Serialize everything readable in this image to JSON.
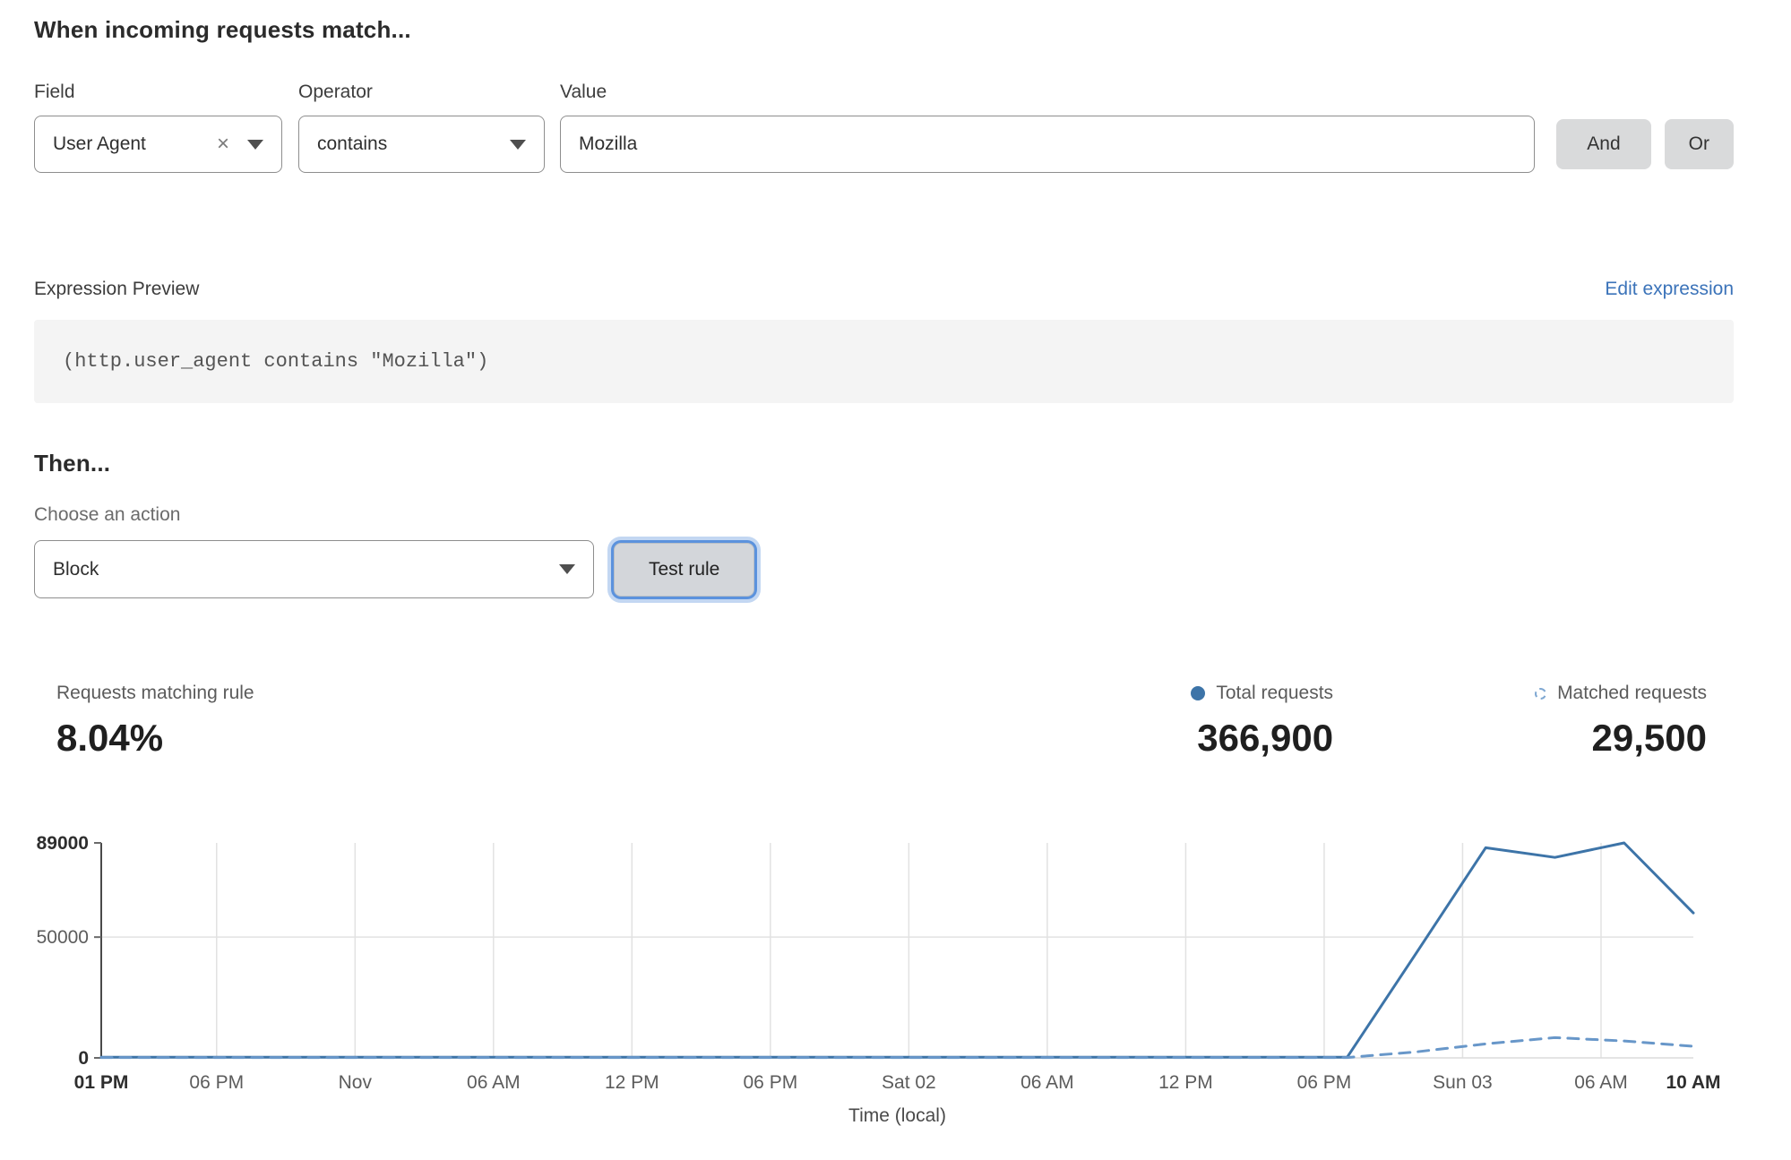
{
  "match_section": {
    "heading": "When incoming requests match...",
    "field": {
      "label": "Field",
      "value": "User Agent"
    },
    "operator": {
      "label": "Operator",
      "value": "contains"
    },
    "value": {
      "label": "Value",
      "value": "Mozilla"
    },
    "and_label": "And",
    "or_label": "Or"
  },
  "icons": {
    "clear": "×"
  },
  "expression": {
    "label": "Expression Preview",
    "edit_link": "Edit expression",
    "code": "(http.user_agent contains \"Mozilla\")"
  },
  "then_section": {
    "heading": "Then...",
    "action_label": "Choose an action",
    "action_value": "Block",
    "test_button": "Test rule"
  },
  "stats": {
    "matching_label": "Requests matching rule",
    "matching_value": "8.04%",
    "total_label": "Total requests",
    "total_value": "366,900",
    "matched_label": "Matched requests",
    "matched_value": "29,500"
  },
  "colors": {
    "solid_line": "#3d74a8",
    "dashed_line": "#6897c9",
    "link_blue": "#3b73b9",
    "grid": "#e2e2e2"
  },
  "chart_data": {
    "type": "line",
    "title": "",
    "xlabel": "Time (local)",
    "ylabel": "",
    "xlim": [
      0,
      69
    ],
    "ylim": [
      0,
      89000
    ],
    "grid": true,
    "legend_position": "above-right",
    "x_hours": [
      0,
      3,
      6,
      9,
      12,
      15,
      18,
      21,
      24,
      27,
      30,
      33,
      36,
      39,
      42,
      45,
      48,
      51,
      54,
      57,
      60,
      63,
      66,
      69
    ],
    "series": [
      {
        "name": "Total requests",
        "style": "solid",
        "color": "#3d74a8",
        "values": [
          300,
          300,
          300,
          300,
          300,
          300,
          300,
          300,
          300,
          300,
          300,
          300,
          300,
          300,
          300,
          300,
          300,
          300,
          300,
          43500,
          87000,
          83000,
          89000,
          60000
        ]
      },
      {
        "name": "Matched requests",
        "style": "dashed",
        "color": "#6897c9",
        "values": [
          150,
          150,
          150,
          150,
          150,
          150,
          150,
          150,
          150,
          150,
          150,
          150,
          150,
          150,
          150,
          150,
          150,
          150,
          150,
          2500,
          5800,
          8400,
          7000,
          4800
        ]
      }
    ],
    "x_ticks": [
      {
        "hour": 0,
        "label": "01 PM",
        "bold": true
      },
      {
        "hour": 5,
        "label": "06 PM"
      },
      {
        "hour": 11,
        "label": "Nov"
      },
      {
        "hour": 17,
        "label": "06 AM"
      },
      {
        "hour": 23,
        "label": "12 PM"
      },
      {
        "hour": 29,
        "label": "06 PM"
      },
      {
        "hour": 35,
        "label": "Sat 02"
      },
      {
        "hour": 41,
        "label": "06 AM"
      },
      {
        "hour": 47,
        "label": "12 PM"
      },
      {
        "hour": 53,
        "label": "06 PM"
      },
      {
        "hour": 59,
        "label": "Sun 03"
      },
      {
        "hour": 65,
        "label": "06 AM"
      },
      {
        "hour": 69,
        "label": "10 AM",
        "bold": true
      }
    ],
    "y_ticks": [
      {
        "value": 0,
        "label": "0",
        "bold": true
      },
      {
        "value": 50000,
        "label": "50000"
      },
      {
        "value": 89000,
        "label": "89000",
        "bold": true
      }
    ]
  }
}
